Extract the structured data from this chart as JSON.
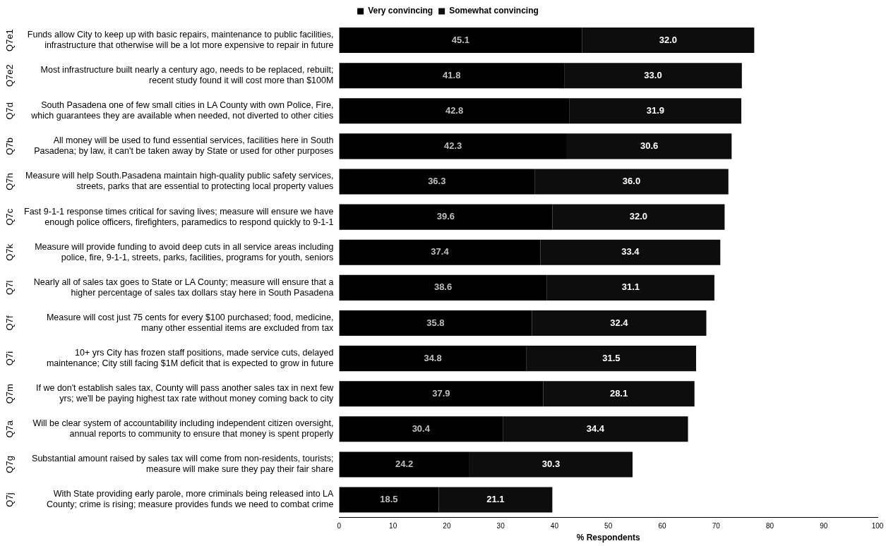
{
  "chart_data": {
    "type": "bar",
    "orientation": "horizontal",
    "stacked": true,
    "xlabel": "% Respondents",
    "categories": [
      "Funds allow City to keep up with basic repairs, maintenance to public facilities,\ninfrastructure that otherwise will be a lot more expensive to repair in future",
      "Most infrastructure built nearly a century ago, needs to be replaced, rebuilt;\nrecent study found it will cost more than $100M",
      "South Pasadena one of few small cities in LA County with own Police, Fire,\nwhich guarantees they are available when needed, not diverted to other cities",
      "All money will be used to fund essential services, facilities here in South\nPasadena; by law, it can't be taken away by State or used for other purposes",
      "Measure will help South.Pasadena maintain high-quality public safety services,\nstreets, parks that are essential to protecting local property values",
      "Fast 9-1-1 response times critical for saving lives; measure will ensure we have\nenough police officers, firefighters, paramedics to respond quickly to 9-1-1",
      "Measure will provide funding to avoid deep cuts in all service areas including\npolice, fire, 9-1-1, streets, parks, facilities, programs for youth, seniors",
      "Nearly all of sales tax goes to State or LA County; measure will ensure that a\nhigher percentage of sales tax dollars stay here in South Pasadena",
      "Measure will cost just 75 cents for every $100 purchased; food, medicine,\nmany other essential items are excluded from tax",
      "10+ yrs City has frozen staff positions, made service cuts, delayed\nmaintenance; City still facing $1M deficit that is expected to grow in future",
      "If we don't establish sales tax, County will pass another sales tax in next few\nyrs; we'll be paying highest tax rate without money coming back to city",
      "Will be clear system of accountability including independent citizen oversight,\nannual reports to community to ensure that money is spent properly",
      "Substantial amount raised by sales tax will come from non-residents, tourists;\nmeasure will make sure they pay their fair share",
      "With State providing early parole, more criminals being released into LA\nCounty; crime is rising; measure provides funds we need to combat crime"
    ],
    "annotations": [
      "Q7e1",
      "Q7e2",
      "Q7d",
      "Q7b",
      "Q7h",
      "Q7c",
      "Q7k",
      "Q7l",
      "Q7f",
      "Q7i",
      "Q7m",
      "Q7a",
      "Q7g",
      "Q7j"
    ],
    "series": [
      {
        "name": "Very convincing",
        "color": "#000000",
        "values": [
          45.1,
          41.8,
          42.8,
          42.3,
          36.3,
          39.6,
          37.4,
          38.6,
          35.8,
          34.8,
          37.9,
          30.4,
          24.2,
          18.5
        ],
        "value_labels": [
          "45.1",
          "41.8",
          "42.8",
          "42.3",
          "36.3",
          "39.6",
          "37.4",
          "38.6",
          "35.8",
          "34.8",
          "37.9",
          "30.4",
          "24.2",
          "18.5"
        ]
      },
      {
        "name": "Somewhat convincing",
        "color": "#0d0d0d",
        "values": [
          32.0,
          33.0,
          31.9,
          30.6,
          36.0,
          32.0,
          33.4,
          31.1,
          32.4,
          31.5,
          28.1,
          34.4,
          30.3,
          21.1
        ],
        "value_labels": [
          "32.0",
          "33.0",
          "31.9",
          "30.6",
          "36.0",
          "32.0",
          "33.4",
          "31.1",
          "32.4",
          "31.5",
          "28.1",
          "34.4",
          "30.3",
          "21.1"
        ]
      }
    ],
    "xlim": [
      0,
      100
    ],
    "xticks": [
      0,
      10,
      20,
      30,
      40,
      50,
      60,
      70,
      80,
      90,
      100
    ],
    "grid": false,
    "legend": "top"
  }
}
